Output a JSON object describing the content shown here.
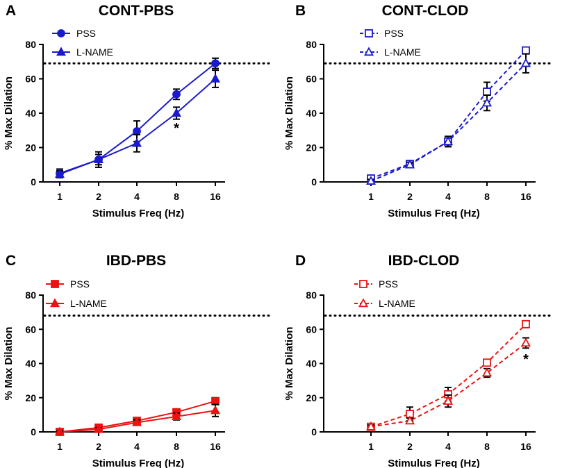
{
  "colors": {
    "blue": "#1a1acc",
    "red": "#ee1111",
    "axis": "#000000"
  },
  "chart_data": [
    {
      "panel_letter": "A",
      "title": "CONT-PBS",
      "type": "line",
      "xlabel": "Stimulus Freq (Hz)",
      "ylabel": "% Max Dilation",
      "categories": [
        "1",
        "2",
        "4",
        "8",
        "16"
      ],
      "ylim": [
        0,
        80
      ],
      "yticks": [
        "0",
        "20",
        "40",
        "60",
        "80"
      ],
      "reference_line": 69,
      "dashed": false,
      "filled": true,
      "color": "blue",
      "series": [
        {
          "name": "PSS",
          "marker": "circle",
          "values": [
            5,
            13,
            29.5,
            51,
            69
          ],
          "errors": [
            2.5,
            3,
            6,
            3,
            3
          ]
        },
        {
          "name": "L-NAME",
          "marker": "triangle",
          "values": [
            4.5,
            13,
            22.5,
            40,
            60
          ],
          "errors": [
            2,
            4.5,
            5,
            3.5,
            5
          ]
        }
      ],
      "annotations": [
        {
          "text": "*",
          "category": "8",
          "y": 32
        }
      ]
    },
    {
      "panel_letter": "B",
      "title": "CONT-CLOD",
      "type": "line",
      "xlabel": "Stimulus Freq (Hz)",
      "ylabel": "% Max Dilation",
      "categories": [
        "1",
        "2",
        "4",
        "8",
        "16"
      ],
      "ylim": [
        0,
        80
      ],
      "yticks": [
        "0",
        "20",
        "40",
        "60",
        "80"
      ],
      "reference_line": 69,
      "dashed": true,
      "filled": false,
      "color": "blue",
      "series": [
        {
          "name": "PSS",
          "marker": "square",
          "values": [
            2,
            10.5,
            23.5,
            52.5,
            76.5
          ],
          "errors": [
            1,
            1.5,
            3,
            5.5,
            1
          ]
        },
        {
          "name": "L-NAME",
          "marker": "triangle",
          "values": [
            0.5,
            10,
            23.5,
            46,
            69
          ],
          "errors": [
            1,
            1.5,
            3,
            4.5,
            5.5
          ]
        }
      ],
      "annotations": []
    },
    {
      "panel_letter": "C",
      "title": "IBD-PBS",
      "type": "line",
      "xlabel": "Stimulus Freq (Hz)",
      "ylabel": "% Max Dilation",
      "categories": [
        "1",
        "2",
        "4",
        "8",
        "16"
      ],
      "ylim": [
        0,
        80
      ],
      "yticks": [
        "0",
        "20",
        "40",
        "60",
        "80"
      ],
      "reference_line": 68,
      "dashed": false,
      "filled": true,
      "color": "red",
      "series": [
        {
          "name": "PSS",
          "marker": "square",
          "values": [
            0,
            2.5,
            6.5,
            11.5,
            18
          ],
          "errors": [
            0.5,
            1,
            1.5,
            1.5,
            2
          ]
        },
        {
          "name": "L-NAME",
          "marker": "triangle",
          "values": [
            0,
            1.5,
            5.5,
            9,
            12.5
          ],
          "errors": [
            0.5,
            1,
            1.5,
            2,
            3.5
          ]
        }
      ],
      "annotations": []
    },
    {
      "panel_letter": "D",
      "title": "IBD-CLOD",
      "type": "line",
      "xlabel": "Stimulus Freq (Hz)",
      "ylabel": "% Max Dilation",
      "categories": [
        "1",
        "2",
        "4",
        "8",
        "16"
      ],
      "ylim": [
        0,
        80
      ],
      "yticks": [
        "0",
        "20",
        "40",
        "60",
        "80"
      ],
      "reference_line": 68,
      "dashed": true,
      "filled": false,
      "color": "red",
      "series": [
        {
          "name": "PSS",
          "marker": "square",
          "values": [
            3,
            10.5,
            22,
            40.5,
            63
          ],
          "errors": [
            1,
            4,
            4,
            1.5,
            2
          ]
        },
        {
          "name": "L-NAME",
          "marker": "triangle",
          "values": [
            3,
            6.5,
            18,
            34.5,
            52
          ],
          "errors": [
            1,
            1.5,
            3.5,
            2.5,
            3
          ]
        }
      ],
      "annotations": [
        {
          "text": "*",
          "category": "16",
          "y": 43
        }
      ]
    }
  ]
}
